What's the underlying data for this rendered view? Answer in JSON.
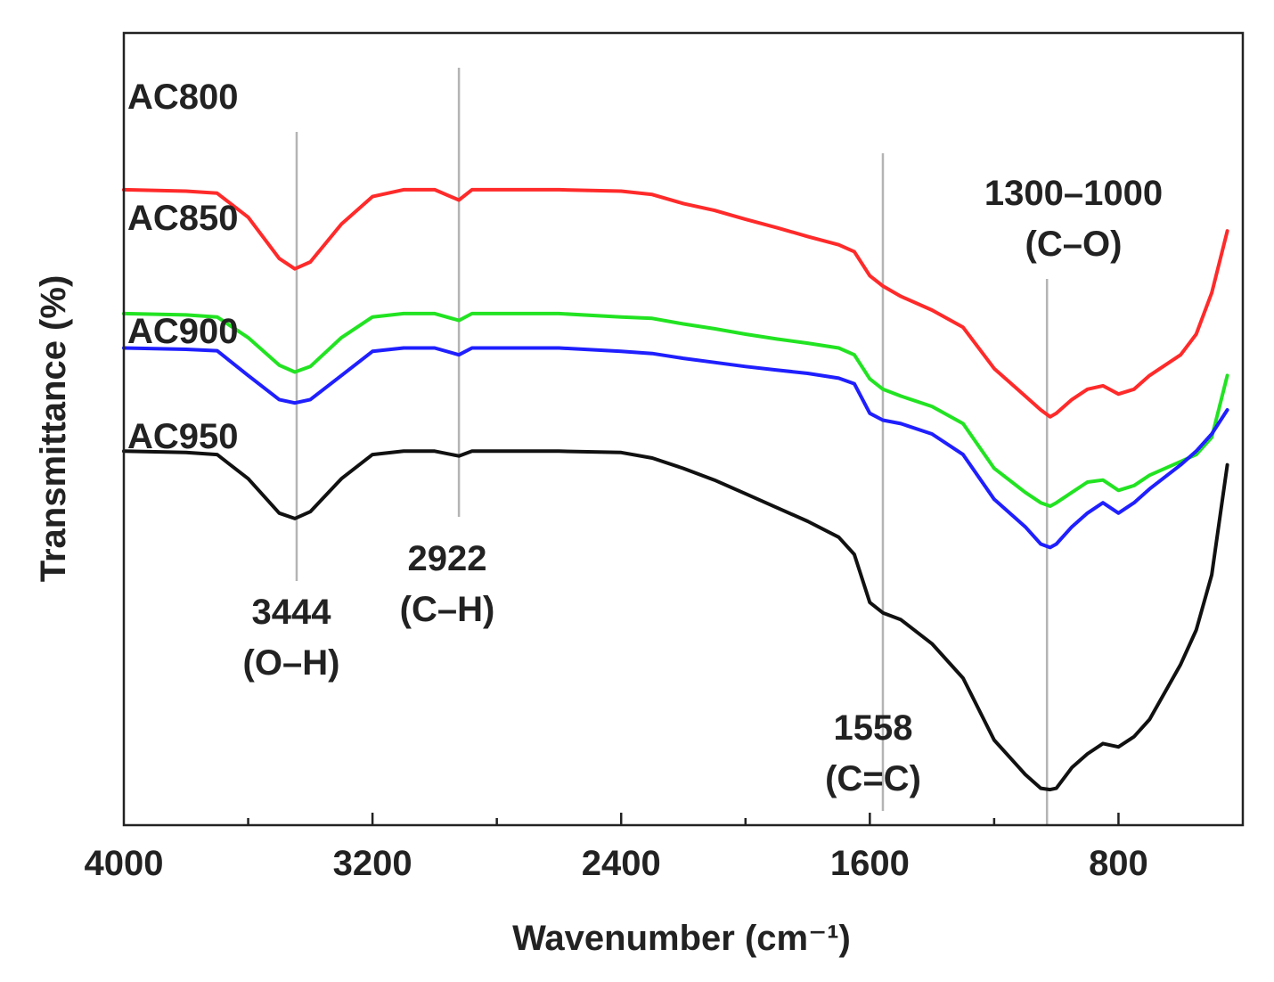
{
  "chart_data": {
    "type": "line",
    "title": "",
    "xlabel": "Wavenumber (cm⁻¹)",
    "ylabel": "Transmittance (%)",
    "xlim": [
      4000,
      400
    ],
    "x_reversed": true,
    "ylim": [
      0,
      100
    ],
    "x_ticks": [
      4000,
      3200,
      2400,
      1600,
      800
    ],
    "x_minor_ticks": [
      3600,
      2800,
      2000,
      1200
    ],
    "grid": false,
    "series": [
      {
        "name": "AC800",
        "color": "#ff2a2a",
        "points": [
          [
            4000,
            89
          ],
          [
            3800,
            88.8
          ],
          [
            3700,
            88.5
          ],
          [
            3600,
            85
          ],
          [
            3500,
            79
          ],
          [
            3450,
            77.5
          ],
          [
            3400,
            78.5
          ],
          [
            3300,
            84
          ],
          [
            3200,
            88
          ],
          [
            3100,
            89
          ],
          [
            3000,
            89
          ],
          [
            2922,
            87.5
          ],
          [
            2880,
            89
          ],
          [
            2800,
            89
          ],
          [
            2600,
            89
          ],
          [
            2400,
            88.8
          ],
          [
            2300,
            88.3
          ],
          [
            2200,
            87
          ],
          [
            2100,
            86
          ],
          [
            2000,
            84.7
          ],
          [
            1900,
            83.5
          ],
          [
            1800,
            82.2
          ],
          [
            1700,
            81
          ],
          [
            1650,
            80
          ],
          [
            1600,
            76.5
          ],
          [
            1558,
            75
          ],
          [
            1500,
            73.5
          ],
          [
            1400,
            71.5
          ],
          [
            1300,
            69
          ],
          [
            1200,
            63
          ],
          [
            1100,
            59
          ],
          [
            1050,
            57
          ],
          [
            1020,
            56
          ],
          [
            1000,
            56.5
          ],
          [
            950,
            58.5
          ],
          [
            900,
            60
          ],
          [
            850,
            60.5
          ],
          [
            800,
            59.3
          ],
          [
            750,
            60
          ],
          [
            700,
            62
          ],
          [
            600,
            65
          ],
          [
            550,
            68
          ],
          [
            500,
            74
          ],
          [
            450,
            83
          ]
        ]
      },
      {
        "name": "AC850",
        "color": "#22e322",
        "points": [
          [
            4000,
            71
          ],
          [
            3800,
            70.8
          ],
          [
            3700,
            70.5
          ],
          [
            3600,
            67.5
          ],
          [
            3500,
            63.5
          ],
          [
            3450,
            62.5
          ],
          [
            3400,
            63.3
          ],
          [
            3300,
            67.5
          ],
          [
            3200,
            70.5
          ],
          [
            3100,
            71
          ],
          [
            3000,
            71
          ],
          [
            2922,
            70
          ],
          [
            2880,
            71
          ],
          [
            2600,
            71
          ],
          [
            2400,
            70.5
          ],
          [
            2300,
            70.3
          ],
          [
            2200,
            69.5
          ],
          [
            2100,
            68.8
          ],
          [
            2000,
            68
          ],
          [
            1900,
            67.3
          ],
          [
            1800,
            66.7
          ],
          [
            1700,
            66
          ],
          [
            1650,
            65
          ],
          [
            1600,
            61.5
          ],
          [
            1558,
            60
          ],
          [
            1500,
            59
          ],
          [
            1400,
            57.5
          ],
          [
            1300,
            55
          ],
          [
            1200,
            48.5
          ],
          [
            1100,
            45
          ],
          [
            1050,
            43.5
          ],
          [
            1020,
            43
          ],
          [
            1000,
            43.5
          ],
          [
            950,
            45
          ],
          [
            900,
            46.5
          ],
          [
            850,
            46.8
          ],
          [
            800,
            45.3
          ],
          [
            750,
            46
          ],
          [
            700,
            47.5
          ],
          [
            600,
            49.5
          ],
          [
            550,
            50.5
          ],
          [
            500,
            53
          ],
          [
            450,
            62
          ]
        ]
      },
      {
        "name": "AC900",
        "color": "#1f1fff",
        "points": [
          [
            4000,
            66
          ],
          [
            3800,
            65.8
          ],
          [
            3700,
            65.6
          ],
          [
            3600,
            62
          ],
          [
            3500,
            58.5
          ],
          [
            3450,
            58
          ],
          [
            3400,
            58.5
          ],
          [
            3300,
            62
          ],
          [
            3200,
            65.5
          ],
          [
            3100,
            66
          ],
          [
            3000,
            66
          ],
          [
            2922,
            65
          ],
          [
            2880,
            66
          ],
          [
            2600,
            66
          ],
          [
            2400,
            65.5
          ],
          [
            2300,
            65.2
          ],
          [
            2200,
            64.5
          ],
          [
            2100,
            63.9
          ],
          [
            2000,
            63.3
          ],
          [
            1900,
            62.8
          ],
          [
            1800,
            62.3
          ],
          [
            1700,
            61.6
          ],
          [
            1650,
            60.8
          ],
          [
            1600,
            56.5
          ],
          [
            1558,
            55.5
          ],
          [
            1500,
            55
          ],
          [
            1400,
            53.5
          ],
          [
            1300,
            50.5
          ],
          [
            1200,
            44
          ],
          [
            1100,
            40
          ],
          [
            1050,
            37.5
          ],
          [
            1020,
            37
          ],
          [
            1000,
            37.5
          ],
          [
            950,
            40
          ],
          [
            900,
            42
          ],
          [
            850,
            43.5
          ],
          [
            800,
            42
          ],
          [
            750,
            43.5
          ],
          [
            700,
            45.5
          ],
          [
            600,
            49
          ],
          [
            550,
            51
          ],
          [
            500,
            53.5
          ],
          [
            450,
            57
          ]
        ]
      },
      {
        "name": "AC950",
        "color": "#111111",
        "points": [
          [
            4000,
            51
          ],
          [
            3800,
            50.8
          ],
          [
            3700,
            50.5
          ],
          [
            3600,
            47
          ],
          [
            3500,
            42
          ],
          [
            3450,
            41.2
          ],
          [
            3400,
            42.2
          ],
          [
            3300,
            47
          ],
          [
            3200,
            50.5
          ],
          [
            3100,
            51
          ],
          [
            3000,
            51
          ],
          [
            2922,
            50.3
          ],
          [
            2880,
            51
          ],
          [
            2600,
            51
          ],
          [
            2400,
            50.8
          ],
          [
            2300,
            50
          ],
          [
            2200,
            48.5
          ],
          [
            2100,
            46.8
          ],
          [
            2000,
            44.8
          ],
          [
            1900,
            42.8
          ],
          [
            1800,
            40.8
          ],
          [
            1700,
            38.5
          ],
          [
            1650,
            36
          ],
          [
            1600,
            29
          ],
          [
            1558,
            27.5
          ],
          [
            1500,
            26.5
          ],
          [
            1400,
            23
          ],
          [
            1300,
            18
          ],
          [
            1200,
            9
          ],
          [
            1100,
            4
          ],
          [
            1050,
            2
          ],
          [
            1020,
            1.8
          ],
          [
            1000,
            2
          ],
          [
            950,
            5
          ],
          [
            900,
            7
          ],
          [
            850,
            8.5
          ],
          [
            800,
            8
          ],
          [
            750,
            9.5
          ],
          [
            700,
            12
          ],
          [
            600,
            20
          ],
          [
            550,
            25
          ],
          [
            500,
            33
          ],
          [
            450,
            49
          ]
        ]
      }
    ],
    "reference_lines": [
      3444,
      2922,
      1558,
      1030
    ],
    "annotations": [
      {
        "value": "3444",
        "bond": "(O–H)"
      },
      {
        "value": "2922",
        "bond": "(C–H)"
      },
      {
        "value": "1558",
        "bond": "(C=C)"
      },
      {
        "value": "1300–1000",
        "bond": "(C–O)"
      }
    ]
  }
}
